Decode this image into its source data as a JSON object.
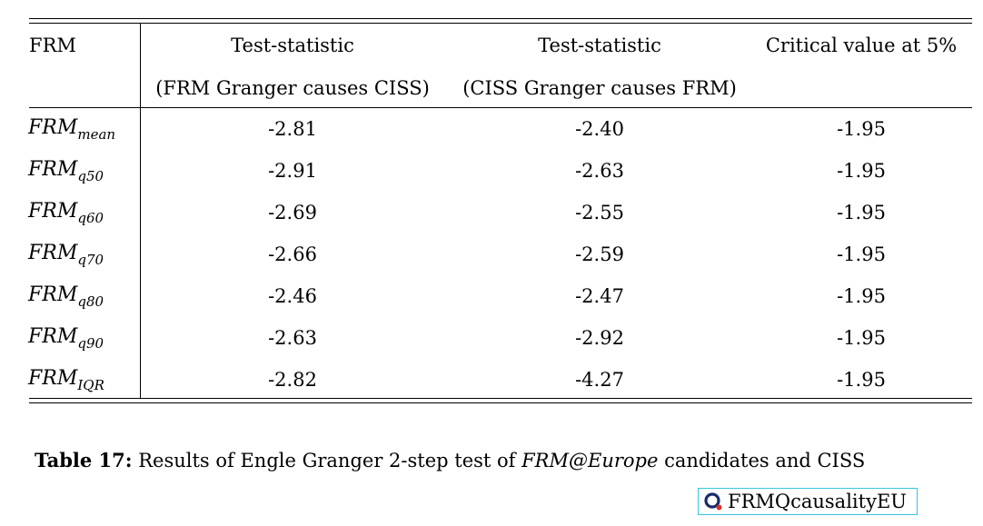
{
  "table": {
    "header": {
      "col0": "FRM",
      "col1_line1": "Test-statistic",
      "col1_line2": "(FRM Granger causes CISS)",
      "col2_line1": "Test-statistic",
      "col2_line2": "(CISS Granger causes FRM)",
      "col3": "Critical value at 5%"
    },
    "rows": [
      {
        "label": "FRM",
        "sub": "mean",
        "v1": "-2.81",
        "v2": "-2.40",
        "v3": "-1.95"
      },
      {
        "label": "FRM",
        "sub": "q50",
        "v1": "-2.91",
        "v2": "-2.63",
        "v3": "-1.95"
      },
      {
        "label": "FRM",
        "sub": "q60",
        "v1": "-2.69",
        "v2": "-2.55",
        "v3": "-1.95"
      },
      {
        "label": "FRM",
        "sub": "q70",
        "v1": "-2.66",
        "v2": "-2.59",
        "v3": "-1.95"
      },
      {
        "label": "FRM",
        "sub": "q80",
        "v1": "-2.46",
        "v2": "-2.47",
        "v3": "-1.95"
      },
      {
        "label": "FRM",
        "sub": "q90",
        "v1": "-2.63",
        "v2": "-2.92",
        "v3": "-1.95"
      },
      {
        "label": "FRM",
        "sub": "IQR",
        "v1": "-2.82",
        "v2": "-4.27",
        "v3": "-1.95"
      }
    ]
  },
  "caption": {
    "label": "Table 17:",
    "text_before": "Results of Engle Granger 2-step test of ",
    "italic": "FRM@Europe",
    "text_after": " candidates and CISS"
  },
  "quantlet": {
    "label": "FRMQcausalityEU",
    "icon": "quantlet-logo-icon",
    "icon_color": "#1a2a6c",
    "accent_color": "#d9322b",
    "border_color": "#37c6e0"
  }
}
